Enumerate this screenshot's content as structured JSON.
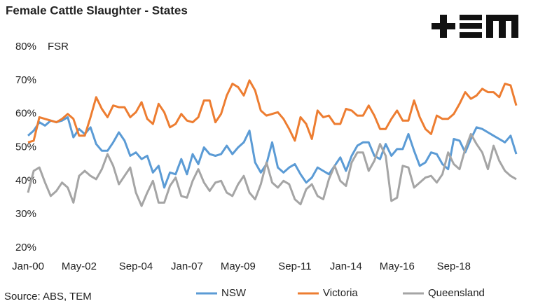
{
  "chart_data": {
    "type": "line",
    "title": "Female Cattle Slaughter - States",
    "y_label": "FSR",
    "source": "Source: ABS, TEM",
    "categories": [
      "Jan-00",
      null,
      null,
      null,
      null,
      null,
      null,
      null,
      null,
      "May-02",
      null,
      null,
      null,
      null,
      null,
      null,
      null,
      null,
      null,
      "Sep-04",
      null,
      null,
      null,
      null,
      null,
      null,
      null,
      null,
      "Jan-07",
      null,
      null,
      null,
      null,
      null,
      null,
      null,
      null,
      "May-09",
      null,
      null,
      null,
      null,
      null,
      null,
      null,
      null,
      null,
      "Sep-11",
      null,
      null,
      null,
      null,
      null,
      null,
      null,
      null,
      "Jan-14",
      null,
      null,
      null,
      null,
      null,
      null,
      null,
      null,
      "May-16",
      null,
      null,
      null,
      null,
      null,
      null,
      null,
      null,
      null,
      "Sep-18",
      null,
      null,
      null,
      null,
      null,
      null,
      null,
      null,
      null,
      null,
      null
    ],
    "series": [
      {
        "name": "NSW",
        "color": "#5b9bd5",
        "values": [
          53.5,
          55,
          57.5,
          56.5,
          58,
          57.5,
          58,
          59,
          53,
          55.5,
          54,
          56,
          51,
          49,
          49,
          51.5,
          54.5,
          52,
          47.5,
          48.5,
          46.5,
          47.5,
          42.5,
          44.5,
          38,
          42.5,
          42,
          46.5,
          42,
          48,
          45,
          50,
          48,
          47.5,
          48,
          50.5,
          48,
          50,
          51.5,
          55,
          45.5,
          42.5,
          45,
          51.5,
          44,
          42.5,
          44,
          45,
          42,
          39.5,
          41,
          44,
          43,
          42,
          44.5,
          47,
          43,
          47.5,
          50.5,
          51.5,
          51.5,
          47.5,
          46.5,
          51,
          47.5,
          49.5,
          49.5,
          54,
          49,
          44.5,
          45.5,
          48.5,
          48,
          45,
          43.5,
          52.5,
          52,
          48.5,
          52.5,
          56,
          55.5,
          54.5,
          53.5,
          52.5,
          51.5,
          53.5,
          48
        ]
      },
      {
        "name": "Victoria",
        "color": "#ed7d31",
        "values": [
          51.5,
          52,
          59,
          58.5,
          58,
          57.5,
          58.5,
          60,
          58.5,
          53.5,
          53.5,
          59,
          65,
          61.5,
          59,
          62.5,
          62,
          62,
          59,
          60.5,
          63.5,
          58.5,
          57,
          63,
          60.5,
          56,
          57,
          60,
          58,
          57.5,
          59,
          64,
          64,
          57.5,
          60,
          65.5,
          69,
          68,
          65.5,
          70,
          67,
          61,
          59.5,
          60,
          60.5,
          58.5,
          55.5,
          52,
          59,
          57,
          52.5,
          61,
          59,
          59.5,
          57,
          57,
          61.5,
          61,
          59.5,
          59.5,
          62.5,
          59.5,
          55.5,
          55.5,
          58.5,
          61,
          58,
          58,
          64,
          59,
          55.5,
          54,
          59.5,
          58.5,
          58.5,
          60,
          63,
          66.5,
          64.5,
          65.5,
          67.5,
          66.5,
          66.5,
          65,
          69,
          68.5,
          62.5
        ]
      },
      {
        "name": "Queensland",
        "color": "#a5a5a5",
        "values": [
          36.5,
          43,
          44,
          39.5,
          35.5,
          37,
          39.5,
          38,
          33.5,
          41.5,
          43,
          41.5,
          40.5,
          43.5,
          48,
          44.5,
          39,
          41.5,
          44,
          36.5,
          32.5,
          36.5,
          40,
          33.5,
          33.5,
          38.5,
          41,
          35.5,
          35,
          40,
          43.5,
          39.5,
          37,
          39.5,
          40,
          36.5,
          35.5,
          39,
          41.5,
          36.5,
          34.5,
          39,
          45.5,
          39.5,
          38,
          40,
          39,
          34.5,
          33,
          37.5,
          39,
          35.5,
          34.5,
          40.5,
          44.5,
          40,
          38.5,
          45.5,
          48.5,
          48.5,
          43,
          46,
          51,
          47.5,
          34,
          35,
          44.5,
          44,
          38,
          39.5,
          41,
          41.5,
          39.5,
          42,
          48.5,
          45,
          43.5,
          49.5,
          54,
          51,
          48.5,
          43.5,
          50.5,
          46,
          43,
          41.5,
          40.5
        ]
      }
    ],
    "ylim": [
      20,
      80
    ],
    "yticks": [
      {
        "value": 20,
        "label": "20%"
      },
      {
        "value": 30,
        "label": "30%"
      },
      {
        "value": 40,
        "label": "40%"
      },
      {
        "value": 50,
        "label": "50%"
      },
      {
        "value": 60,
        "label": "60%"
      },
      {
        "value": 70,
        "label": "70%"
      },
      {
        "value": 80,
        "label": "80%"
      }
    ],
    "grid": false,
    "legend": "bottom"
  }
}
